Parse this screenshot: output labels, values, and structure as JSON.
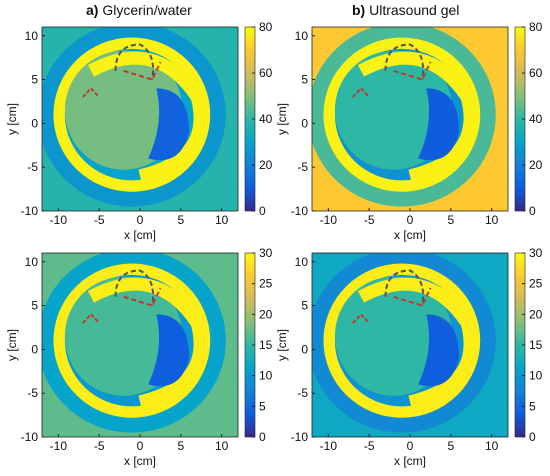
{
  "figure": {
    "column_titles": [
      {
        "tag": "a)",
        "text": "Glycerin/water"
      },
      {
        "tag": "b)",
        "text": "Ultrasound gel"
      }
    ]
  },
  "colors": {
    "parula": [
      "#352a87",
      "#0f5cdd",
      "#1481d6",
      "#06a4ca",
      "#2eb7a4",
      "#87bf77",
      "#d1bb59",
      "#fec832",
      "#f9fb0e"
    ],
    "contour": "#c0392b",
    "contour_dark": "#555555"
  },
  "chart_data": [
    {
      "type": "heatmap",
      "panel": "a-top",
      "material": "Glycerin/water",
      "xlabel": "x [cm]",
      "ylabel": "y [cm]",
      "xlim": [
        -12,
        12
      ],
      "ylim": [
        -10,
        11
      ],
      "xticks": [
        -10,
        -5,
        0,
        5,
        10
      ],
      "yticks": [
        -10,
        -5,
        0,
        5,
        10
      ],
      "colorbar": {
        "range": [
          0,
          80
        ],
        "ticks": [
          0,
          20,
          40,
          60,
          80
        ]
      },
      "background_value": 38,
      "interior_value": 48,
      "ring_value": 78,
      "lumen_value": 12
    },
    {
      "type": "heatmap",
      "panel": "b-top",
      "material": "Ultrasound gel",
      "xlabel": "x [cm]",
      "ylabel": "y [cm]",
      "xlim": [
        -12,
        12
      ],
      "ylim": [
        -10,
        11
      ],
      "xticks": [
        -10,
        -5,
        0,
        5,
        10
      ],
      "yticks": [
        -10,
        -5,
        0,
        5,
        10
      ],
      "colorbar": {
        "range": [
          0,
          80
        ],
        "ticks": [
          0,
          20,
          40,
          60,
          80
        ]
      },
      "background_value": 70,
      "interior_value": 40,
      "ring_value": 78,
      "lumen_value": 10
    },
    {
      "type": "heatmap",
      "panel": "a-bottom",
      "material": "Glycerin/water",
      "xlabel": "x [cm]",
      "ylabel": "y [cm]",
      "xlim": [
        -12,
        12
      ],
      "ylim": [
        -10,
        11
      ],
      "xticks": [
        -10,
        -5,
        0,
        5,
        10
      ],
      "yticks": [
        -10,
        -5,
        0,
        5,
        10
      ],
      "colorbar": {
        "range": [
          0,
          30
        ],
        "ticks": [
          0,
          5,
          10,
          15,
          20,
          25,
          30
        ]
      },
      "background_value": 17,
      "interior_value": 16,
      "ring_value": 29,
      "lumen_value": 4
    },
    {
      "type": "heatmap",
      "panel": "b-bottom",
      "material": "Ultrasound gel",
      "xlabel": "x [cm]",
      "ylabel": "y [cm]",
      "xlim": [
        -12,
        12
      ],
      "ylim": [
        -10,
        11
      ],
      "xticks": [
        -10,
        -5,
        0,
        5,
        10
      ],
      "yticks": [
        -10,
        -5,
        0,
        5,
        10
      ],
      "colorbar": {
        "range": [
          0,
          30
        ],
        "ticks": [
          0,
          5,
          10,
          15,
          20,
          25,
          30
        ]
      },
      "background_value": 12,
      "interior_value": 15,
      "ring_value": 29,
      "lumen_value": 4
    }
  ]
}
